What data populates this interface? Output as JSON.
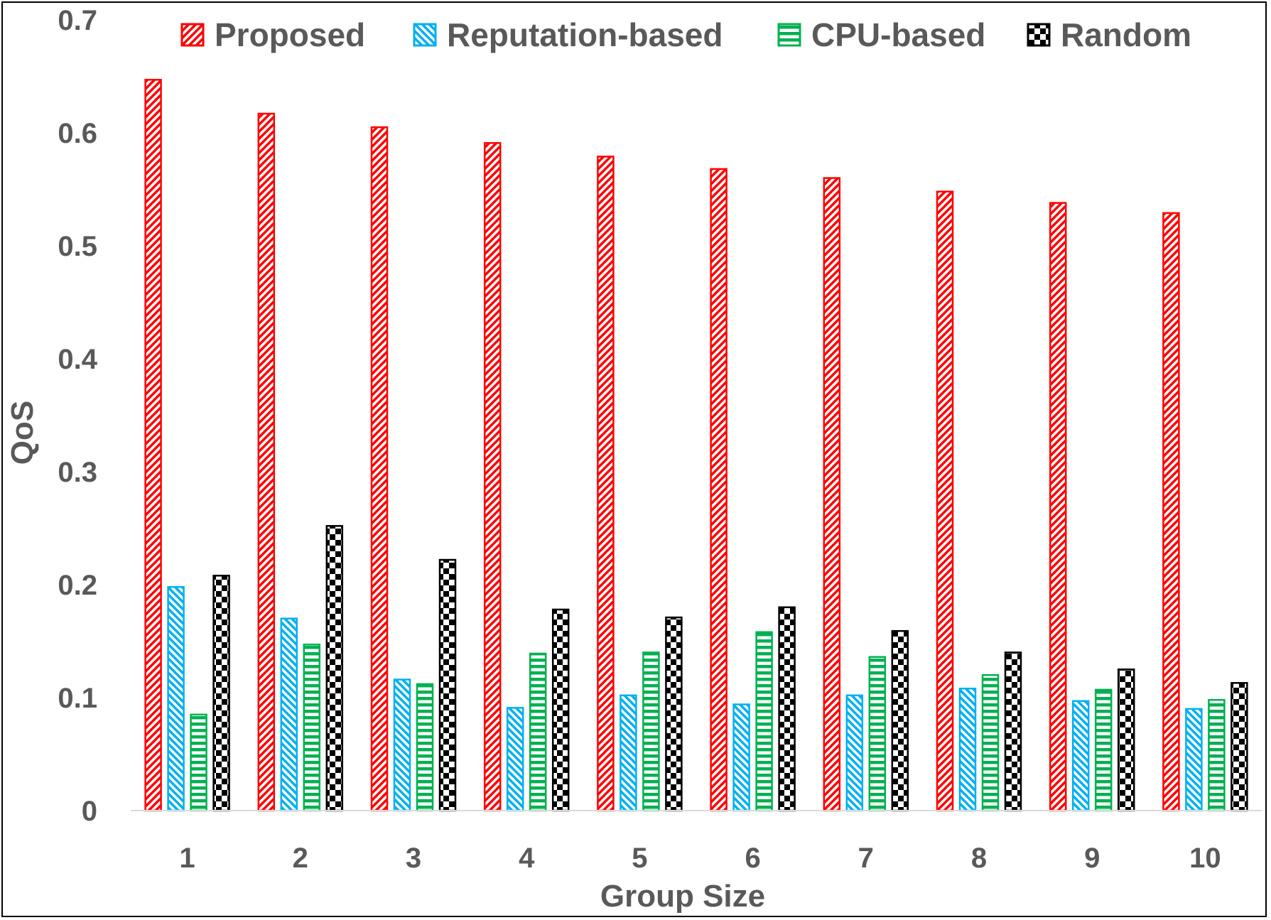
{
  "chart_data": {
    "type": "bar",
    "title": "",
    "xlabel": "Group Size",
    "ylabel": "QoS",
    "ylim": [
      0,
      0.7
    ],
    "yticks": [
      "0",
      "0.1",
      "0.2",
      "0.3",
      "0.4",
      "0.5",
      "0.6",
      "0.7"
    ],
    "grid": false,
    "legend_position": "top",
    "categories": [
      "1",
      "2",
      "3",
      "4",
      "5",
      "6",
      "7",
      "8",
      "9",
      "10"
    ],
    "series": [
      {
        "name": "Proposed",
        "color": "#ff0000",
        "pattern": "diagonal-up",
        "values": [
          0.647,
          0.617,
          0.605,
          0.591,
          0.579,
          0.568,
          0.56,
          0.548,
          0.538,
          0.529
        ]
      },
      {
        "name": "Reputation-based",
        "color": "#00b0f0",
        "pattern": "diagonal-down",
        "values": [
          0.198,
          0.17,
          0.116,
          0.091,
          0.102,
          0.094,
          0.102,
          0.108,
          0.097,
          0.09
        ]
      },
      {
        "name": "CPU-based",
        "color": "#00b050",
        "pattern": "horizontal",
        "values": [
          0.085,
          0.147,
          0.112,
          0.139,
          0.14,
          0.158,
          0.136,
          0.12,
          0.107,
          0.098
        ]
      },
      {
        "name": "Random",
        "color": "#000000",
        "pattern": "checker",
        "values": [
          0.208,
          0.252,
          0.222,
          0.178,
          0.171,
          0.18,
          0.159,
          0.14,
          0.125,
          0.113
        ]
      }
    ]
  }
}
